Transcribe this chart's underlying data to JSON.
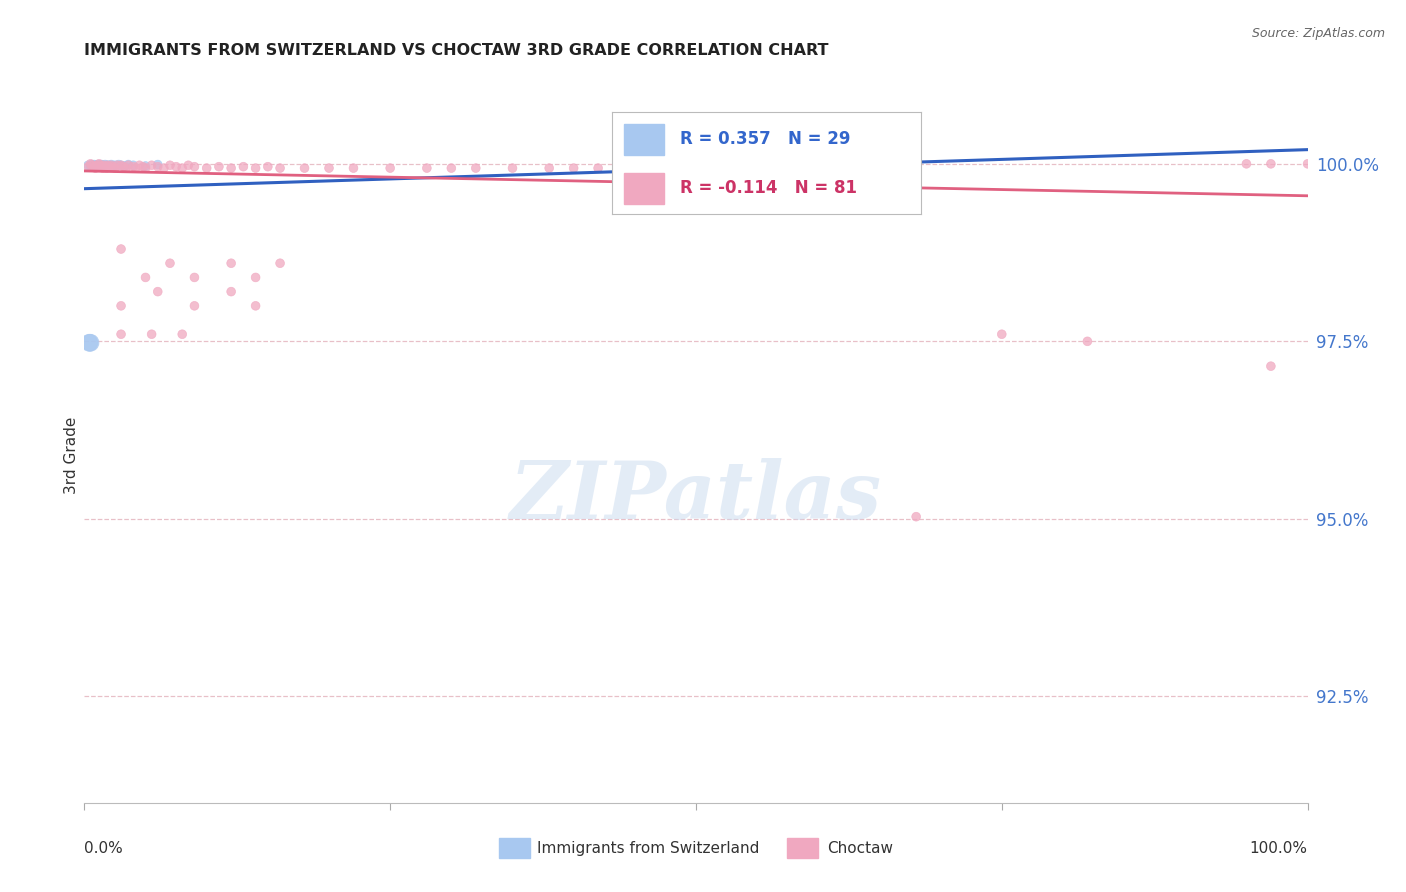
{
  "title": "IMMIGRANTS FROM SWITZERLAND VS CHOCTAW 3RD GRADE CORRELATION CHART",
  "source": "Source: ZipAtlas.com",
  "ylabel": "3rd Grade",
  "y_tick_labels": [
    "92.5%",
    "95.0%",
    "97.5%",
    "100.0%"
  ],
  "y_tick_values": [
    0.925,
    0.95,
    0.975,
    1.0
  ],
  "x_range": [
    0.0,
    1.0
  ],
  "y_range": [
    0.91,
    1.008
  ],
  "blue_color": "#a8c8f0",
  "pink_color": "#f0a8c0",
  "blue_line_color": "#3060c0",
  "pink_line_color": "#e06080",
  "grid_color": "#e8c0c8",
  "blue_trend_x": [
    0.0,
    1.0
  ],
  "blue_trend_y": [
    0.9965,
    1.002
  ],
  "pink_trend_x": [
    0.0,
    1.0
  ],
  "pink_trend_y": [
    0.999,
    0.9955
  ],
  "blue_scatter_x": [
    0.003,
    0.005,
    0.006,
    0.007,
    0.008,
    0.009,
    0.01,
    0.011,
    0.012,
    0.013,
    0.014,
    0.015,
    0.016,
    0.017,
    0.018,
    0.019,
    0.02,
    0.022,
    0.024,
    0.025,
    0.028,
    0.03,
    0.033,
    0.036,
    0.04,
    0.05,
    0.06,
    0.005,
    0.004
  ],
  "blue_scatter_y": [
    0.9998,
    0.9997,
    0.9999,
    0.9998,
    0.9999,
    0.9997,
    0.9998,
    0.9999,
    0.9998,
    0.9997,
    0.9999,
    0.9998,
    0.9997,
    0.9999,
    0.9998,
    0.9997,
    0.9998,
    0.9999,
    0.9997,
    0.9998,
    0.9999,
    0.9998,
    0.9997,
    0.9999,
    0.9998,
    0.9997,
    0.9999,
    0.9748,
    0.9748
  ],
  "blue_scatter_sizes": [
    40,
    40,
    40,
    40,
    40,
    40,
    40,
    40,
    40,
    40,
    40,
    40,
    40,
    40,
    40,
    40,
    40,
    40,
    40,
    40,
    40,
    40,
    40,
    40,
    40,
    40,
    40,
    150,
    150
  ],
  "pink_scatter_x": [
    0.003,
    0.005,
    0.006,
    0.008,
    0.009,
    0.01,
    0.011,
    0.012,
    0.013,
    0.014,
    0.015,
    0.016,
    0.017,
    0.018,
    0.019,
    0.02,
    0.022,
    0.024,
    0.025,
    0.027,
    0.03,
    0.032,
    0.034,
    0.036,
    0.04,
    0.042,
    0.045,
    0.048,
    0.05,
    0.055,
    0.06,
    0.065,
    0.07,
    0.075,
    0.08,
    0.085,
    0.09,
    0.1,
    0.11,
    0.12,
    0.13,
    0.14,
    0.15,
    0.16,
    0.18,
    0.2,
    0.22,
    0.25,
    0.28,
    0.3,
    0.32,
    0.35,
    0.38,
    0.4,
    0.42,
    0.45,
    0.48,
    0.5,
    0.55,
    0.95,
    0.03,
    0.05,
    0.07,
    0.09,
    0.12,
    0.14,
    0.16,
    0.03,
    0.06,
    0.09,
    0.12,
    0.14,
    0.03,
    0.055,
    0.08,
    0.75,
    0.82,
    0.97,
    1.0,
    0.68,
    0.97
  ],
  "pink_scatter_y": [
    0.9996,
    1.0,
    0.9998,
    0.9996,
    0.9994,
    0.9998,
    0.9996,
    1.0,
    0.9998,
    0.9996,
    0.9994,
    0.9998,
    0.9996,
    0.9994,
    0.9998,
    0.9996,
    0.9998,
    0.9996,
    0.9994,
    0.9998,
    0.9998,
    0.9996,
    0.9994,
    0.9998,
    0.9996,
    0.9994,
    0.9998,
    0.9996,
    0.9994,
    0.9998,
    0.9996,
    0.9994,
    0.9998,
    0.9996,
    0.9994,
    0.9998,
    0.9996,
    0.9994,
    0.9996,
    0.9994,
    0.9996,
    0.9994,
    0.9996,
    0.9994,
    0.9994,
    0.9994,
    0.9994,
    0.9994,
    0.9994,
    0.9994,
    0.9994,
    0.9994,
    0.9994,
    0.9994,
    0.9994,
    0.9994,
    0.9994,
    0.9994,
    0.9994,
    1.0,
    0.988,
    0.984,
    0.986,
    0.984,
    0.986,
    0.984,
    0.986,
    0.98,
    0.982,
    0.98,
    0.982,
    0.98,
    0.976,
    0.976,
    0.976,
    0.976,
    0.975,
    1.0,
    1.0,
    0.9503,
    0.9715
  ],
  "pink_scatter_sizes": [
    40,
    40,
    40,
    40,
    40,
    40,
    40,
    40,
    40,
    40,
    40,
    40,
    40,
    40,
    40,
    40,
    40,
    40,
    40,
    40,
    40,
    40,
    40,
    40,
    40,
    40,
    40,
    40,
    40,
    40,
    40,
    40,
    40,
    40,
    40,
    40,
    40,
    40,
    40,
    40,
    40,
    40,
    40,
    40,
    40,
    40,
    40,
    40,
    40,
    40,
    40,
    40,
    40,
    40,
    40,
    40,
    40,
    40,
    40,
    40,
    40,
    40,
    40,
    40,
    40,
    40,
    40,
    40,
    40,
    40,
    40,
    40,
    40,
    40,
    40,
    40,
    40,
    40,
    40,
    40,
    40
  ]
}
